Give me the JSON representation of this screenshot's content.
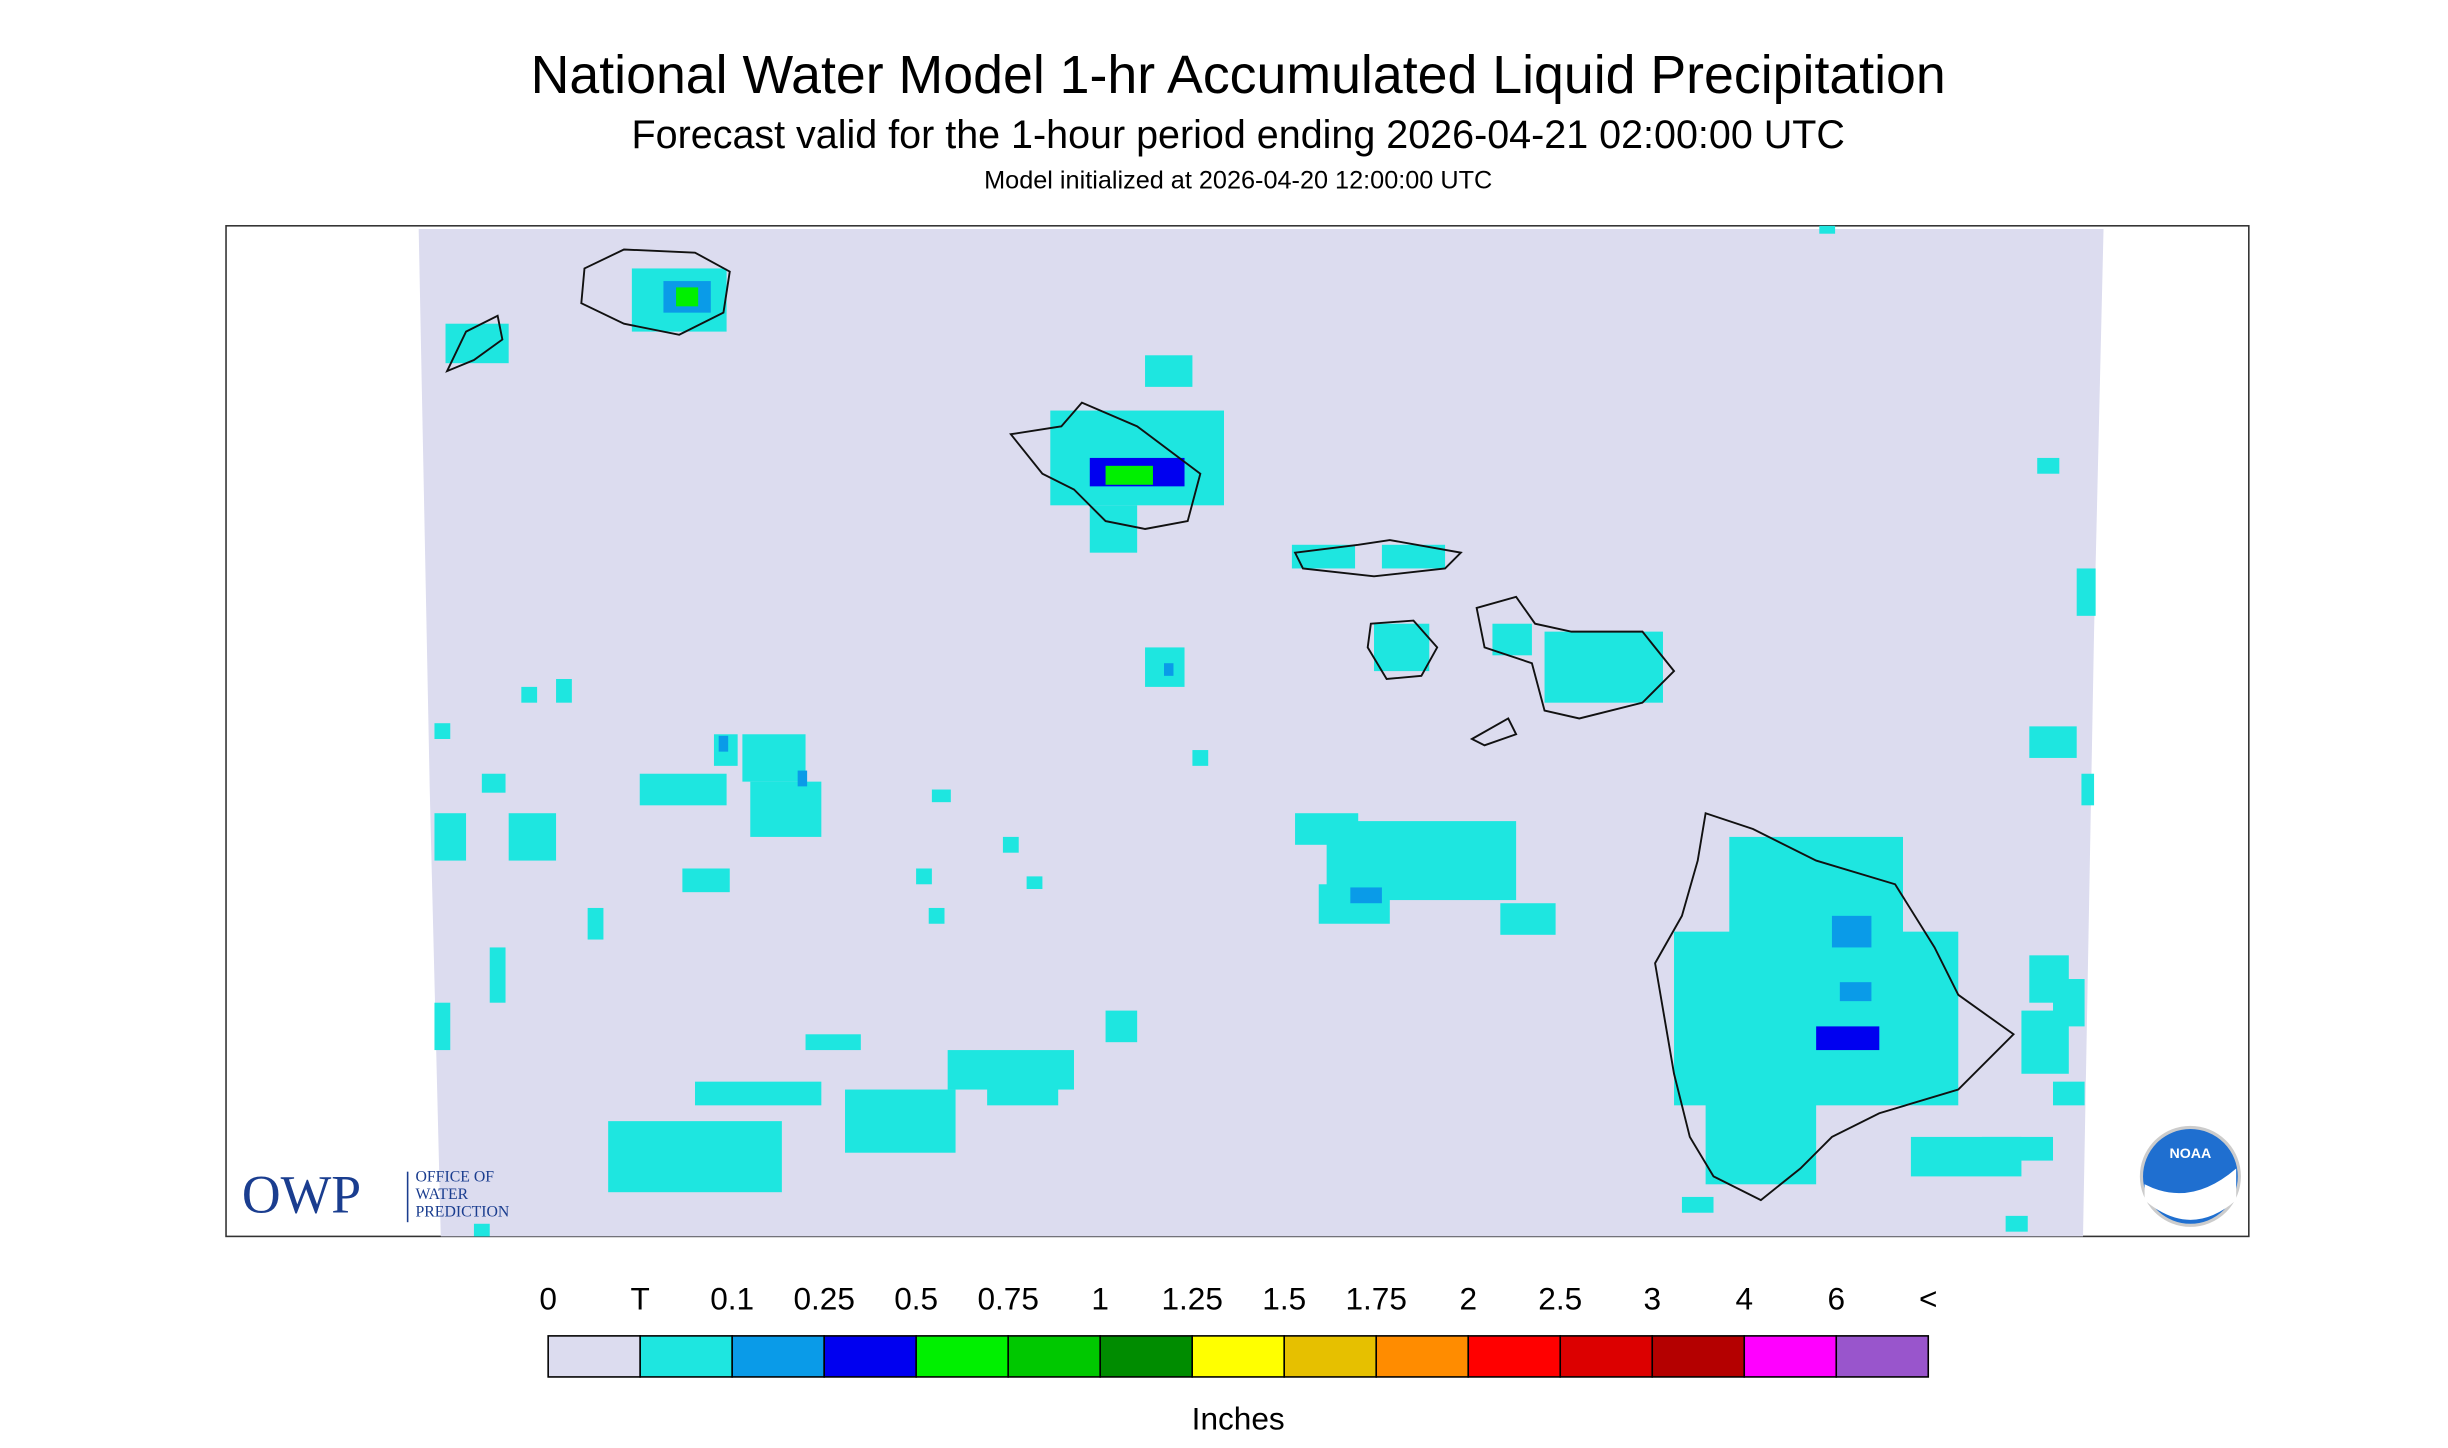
{
  "header": {
    "title": "National Water Model 1-hr Accumulated Liquid Precipitation",
    "subtitle": "Forecast valid for the 1-hour period ending 2026-04-21 02:00:00 UTC",
    "initialized": "Model initialized at 2026-04-20 12:00:00 UTC"
  },
  "legend": {
    "labels": [
      "0",
      "T",
      "0.1",
      "0.25",
      "0.5",
      "0.75",
      "1",
      "1.25",
      "1.5",
      "1.75",
      "2",
      "2.5",
      "3",
      "4",
      "6",
      "<"
    ],
    "colors": [
      "#dcdcef",
      "#1ee6e0",
      "#0a9be8",
      "#0000f0",
      "#00f000",
      "#00c800",
      "#008c00",
      "#ffff00",
      "#e6c000",
      "#ff8c00",
      "#ff0000",
      "#dc0000",
      "#b40000",
      "#ff00ff",
      "#9955cc"
    ],
    "units": "Inches"
  },
  "logos": {
    "owp": "OWP",
    "owp_name": [
      "OFFICE OF",
      "WATER",
      "PREDICTION"
    ],
    "noaa": "NOAA"
  }
}
